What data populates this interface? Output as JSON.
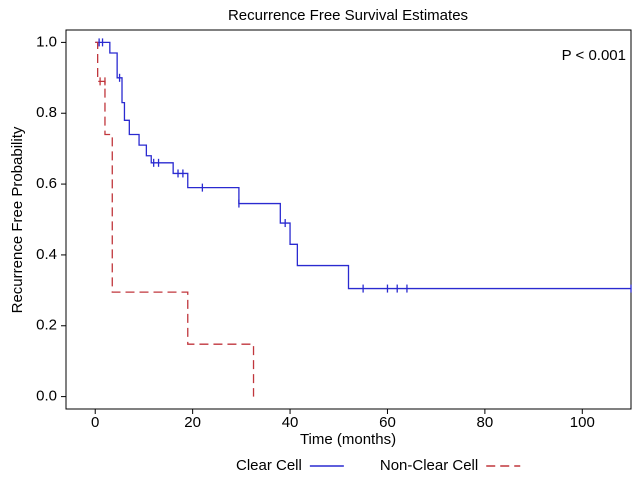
{
  "chart_data": {
    "type": "step",
    "title": "Recurrence Free Survival Estimates",
    "x_label": "Time (months)",
    "y_label": "Recurrence Free Probability",
    "annotation": "P < 0.001",
    "xlim": [
      -6,
      110
    ],
    "ylim": [
      -0.035,
      1.035
    ],
    "xticks": [
      0,
      20,
      40,
      60,
      80,
      100
    ],
    "yticks": [
      {
        "value": 0,
        "label": "0.0"
      },
      0.2,
      0.4,
      0.6,
      0.8,
      {
        "value": 1,
        "label": "1.0"
      }
    ],
    "legend": "bottom",
    "series": [
      {
        "name": "Clear Cell",
        "color": "#2a2ad0",
        "line_style": "solid",
        "x": [
          0,
          3,
          4.5,
          5.5,
          6,
          7,
          9,
          10.5,
          11.5,
          16,
          19,
          29.5,
          38,
          40,
          41.5,
          52,
          110
        ],
        "values": [
          1,
          0.97,
          0.9,
          0.83,
          0.78,
          0.74,
          0.71,
          0.68,
          0.66,
          0.63,
          0.59,
          0.545,
          0.49,
          0.43,
          0.37,
          0.305,
          0.305
        ],
        "censored": {
          "x": [
            0.8,
            1.5,
            5,
            12,
            13,
            17,
            18,
            22,
            29.5,
            39,
            55,
            60,
            62,
            64,
            110
          ],
          "values": [
            1,
            1,
            0.9,
            0.66,
            0.66,
            0.63,
            0.63,
            0.59,
            0.545,
            0.49,
            0.305,
            0.305,
            0.305,
            0.305,
            0.305
          ]
        }
      },
      {
        "name": "Non-Clear Cell",
        "color": "#c0363c",
        "line_style": "dashed",
        "x": [
          0,
          0.5,
          2,
          3.5,
          19,
          32.5
        ],
        "values": [
          1,
          0.89,
          0.74,
          0.295,
          0.148,
          0
        ],
        "censored": {
          "x": [
            1,
            2
          ],
          "values": [
            0.89,
            0.89
          ]
        }
      }
    ]
  }
}
